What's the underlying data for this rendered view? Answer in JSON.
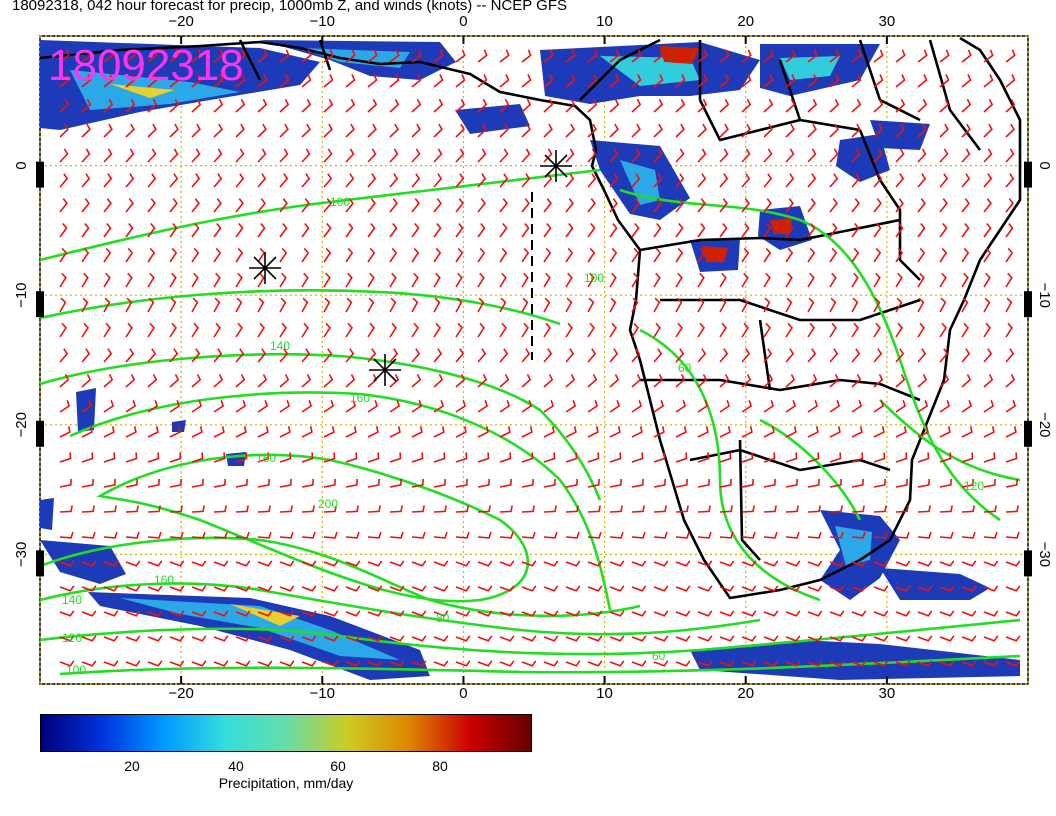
{
  "title": "18092318, 042 hour forecast for precip, 1000mb Z, and winds (knots) -- NCEP GFS",
  "stamp": "18092318",
  "map": {
    "lon_ticks": [
      "−20",
      "−10",
      "0",
      "10",
      "20",
      "30"
    ],
    "lon_values": [
      -20,
      -10,
      0,
      10,
      20,
      30
    ],
    "lat_ticks": [
      "0",
      "−10",
      "−20",
      "−30"
    ],
    "lat_values": [
      0,
      -10,
      -20,
      -30
    ],
    "lon_range": [
      -30,
      40
    ],
    "lat_range": [
      -40,
      10
    ],
    "contour_labels": [
      "100",
      "140",
      "160",
      "180",
      "200",
      "160",
      "140",
      "120",
      "100",
      "60",
      "100",
      "60",
      "80",
      "120"
    ],
    "colors": {
      "contour": "#22dd22",
      "wind": "#ee1111",
      "grid": "#d4b400",
      "stamp": "#ff33ee"
    }
  },
  "colorbar": {
    "ticks": [
      "20",
      "40",
      "60",
      "80"
    ],
    "tick_values": [
      20,
      40,
      60,
      80
    ],
    "range": [
      0,
      100
    ],
    "label": "Precipitation, mm/day",
    "stops": [
      "#00007a",
      "#0033dd",
      "#0099ff",
      "#33dddd",
      "#66ddaa",
      "#cccc22",
      "#dd8800",
      "#cc0000",
      "#660000"
    ]
  }
}
